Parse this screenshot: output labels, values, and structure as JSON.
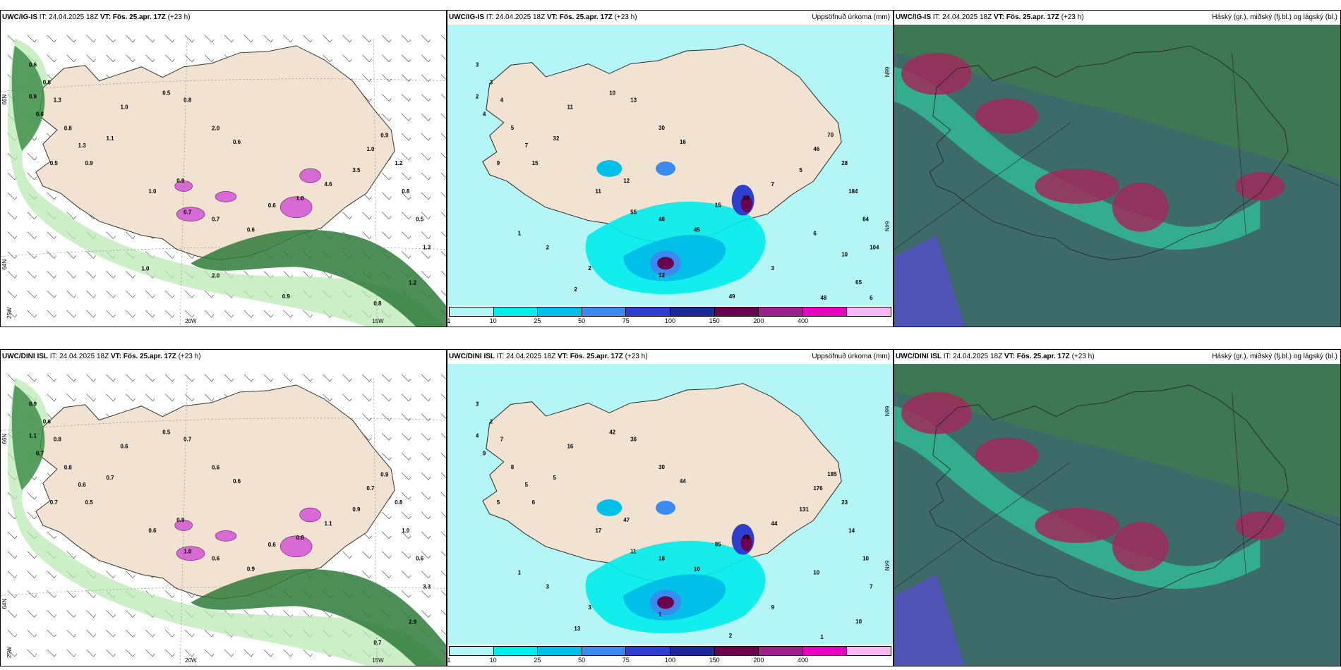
{
  "panels": [
    {
      "model": "UWC/IG-IS",
      "it_label": "IT:",
      "it": "24.04.2025 18Z",
      "vt_label": "VT:",
      "vt": "Fös. 25.apr. 17Z",
      "lead": "(+23 h)",
      "title_right": "",
      "kind": "wind",
      "lat_labels": [
        "66N",
        "64N"
      ],
      "lon_labels": [
        "25W",
        "20W",
        "15W"
      ],
      "values": [
        "0.6",
        "0.8",
        "0.9",
        "1.3",
        "0.6",
        "0.8",
        "1.3",
        "0.5",
        "0.9",
        "1.1",
        "1.0",
        "0.5",
        "0.8",
        "2.0",
        "0.6",
        "0.9",
        "1.0",
        "0.7",
        "0.7",
        "0.6",
        "0.6",
        "1.0",
        "4.6",
        "3.5",
        "1.0",
        "0.9",
        "1.2",
        "0.8",
        "0.5",
        "1.3",
        "1.2",
        "0.8",
        "0.9",
        "2.0",
        "1.0"
      ]
    },
    {
      "model": "UWC/IG-IS",
      "it_label": "IT:",
      "it": "24.04.2025 18Z",
      "vt_label": "VT:",
      "vt": "Fös. 25.apr. 17Z",
      "lead": "(+23 h)",
      "title_right": "Uppsöfnuð úrkoma (mm)",
      "kind": "precip",
      "lat_labels": [
        "66N",
        "64N"
      ],
      "values": [
        "3",
        "3",
        "2",
        "4",
        "4",
        "5",
        "7",
        "9",
        "15",
        "32",
        "11",
        "10",
        "13",
        "30",
        "16",
        "12",
        "11",
        "55",
        "48",
        "45",
        "15",
        "14",
        "7",
        "5",
        "46",
        "70",
        "28",
        "184",
        "84",
        "104",
        "65",
        "48",
        "49",
        "12",
        "2",
        "2",
        "1",
        "2",
        "3",
        "6",
        "6",
        "10"
      ],
      "colorbar": {
        "ticks": [
          "1",
          "10",
          "25",
          "50",
          "75",
          "100",
          "150",
          "200",
          "400"
        ],
        "colors": [
          "#b4f5f5",
          "#00eded",
          "#00bfe8",
          "#3a8af0",
          "#2e3fd0",
          "#1c2a98",
          "#6a0050",
          "#9c1f8c",
          "#e800c0",
          "#f5b8f5"
        ]
      }
    },
    {
      "model": "UWC/IG-IS",
      "it_label": "IT:",
      "it": "24.04.2025 18Z",
      "vt_label": "VT:",
      "vt": "Fös. 25.apr. 17Z",
      "lead": "(+23 h)",
      "title_right": "Háský (gr.), miðský (fj.bl.) og lágský (bl.)",
      "kind": "cloud"
    },
    {
      "model": "UWC/DINI ISL",
      "it_label": "IT:",
      "it": "24.04.2025 18Z",
      "vt_label": "VT:",
      "vt": "Fös. 25.apr. 17Z",
      "lead": "(+23 h)",
      "title_right": "",
      "kind": "wind",
      "lat_labels": [
        "66N",
        "64N"
      ],
      "lon_labels": [
        "25W",
        "20W",
        "15W"
      ],
      "values": [
        "0.9",
        "0.6",
        "1.1",
        "0.8",
        "0.7",
        "0.8",
        "0.6",
        "0.7",
        "0.5",
        "0.7",
        "0.6",
        "0.5",
        "0.7",
        "0.6",
        "0.6",
        "0.9",
        "0.6",
        "1.0",
        "0.6",
        "0.9",
        "0.6",
        "0.8",
        "1.1",
        "0.9",
        "0.7",
        "0.9",
        "0.8",
        "1.0",
        "0.6",
        "3.3",
        "2.9",
        "0.7"
      ]
    },
    {
      "model": "UWC/DINI ISL",
      "it_label": "IT:",
      "it": "24.04.2025 18Z",
      "vt_label": "VT:",
      "vt": "Fös. 25.apr. 17Z",
      "lead": "(+23 h)",
      "title_right": "Uppsöfnuð úrkoma (mm)",
      "kind": "precip",
      "lat_labels": [
        "66N",
        "64N"
      ],
      "values": [
        "3",
        "2",
        "4",
        "7",
        "9",
        "8",
        "5",
        "5",
        "6",
        "5",
        "16",
        "42",
        "36",
        "30",
        "44",
        "47",
        "17",
        "11",
        "18",
        "10",
        "85",
        "48",
        "44",
        "131",
        "176",
        "185",
        "23",
        "14",
        "10",
        "7",
        "10",
        "1",
        "2",
        "1",
        "3",
        "3",
        "1",
        "13",
        "9",
        "10"
      ],
      "colorbar": {
        "ticks": [
          "1",
          "10",
          "25",
          "50",
          "75",
          "100",
          "150",
          "200",
          "400"
        ],
        "colors": [
          "#b4f5f5",
          "#00eded",
          "#00bfe8",
          "#3a8af0",
          "#2e3fd0",
          "#1c2a98",
          "#6a0050",
          "#9c1f8c",
          "#e800c0",
          "#f5b8f5"
        ]
      }
    },
    {
      "model": "UWC/DINI ISL",
      "it_label": "IT:",
      "it": "24.04.2025 18Z",
      "vt_label": "VT:",
      "vt": "Fös. 25.apr. 17Z",
      "lead": "(+23 h)",
      "title_right": "Háský (gr.), miðský (fj.bl.) og lágský (bl.)",
      "kind": "cloud"
    }
  ]
}
